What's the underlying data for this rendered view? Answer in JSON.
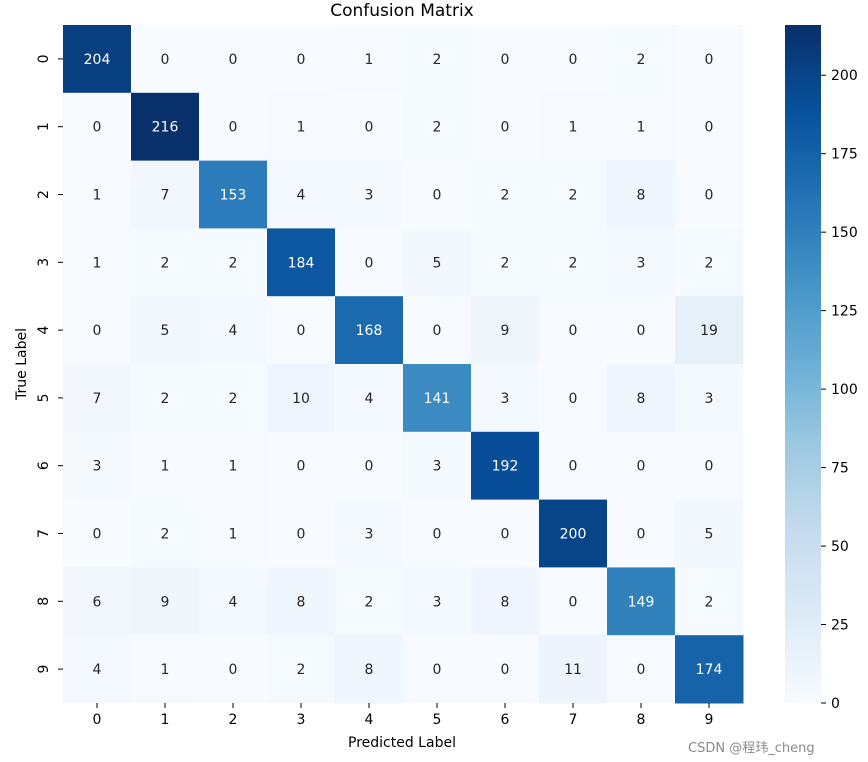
{
  "chart_data": {
    "type": "heatmap",
    "title": "Confusion Matrix",
    "xlabel": "Predicted Label",
    "ylabel": "True Label",
    "x_categories": [
      "0",
      "1",
      "2",
      "3",
      "4",
      "5",
      "6",
      "7",
      "8",
      "9"
    ],
    "y_categories": [
      "0",
      "1",
      "2",
      "3",
      "4",
      "5",
      "6",
      "7",
      "8",
      "9"
    ],
    "values": [
      [
        204,
        0,
        0,
        0,
        1,
        2,
        0,
        0,
        2,
        0
      ],
      [
        0,
        216,
        0,
        1,
        0,
        2,
        0,
        1,
        1,
        0
      ],
      [
        1,
        7,
        153,
        4,
        3,
        0,
        2,
        2,
        8,
        0
      ],
      [
        1,
        2,
        2,
        184,
        0,
        5,
        2,
        2,
        3,
        2
      ],
      [
        0,
        5,
        4,
        0,
        168,
        0,
        9,
        0,
        0,
        19
      ],
      [
        7,
        2,
        2,
        10,
        4,
        141,
        3,
        0,
        8,
        3
      ],
      [
        3,
        1,
        1,
        0,
        0,
        3,
        192,
        0,
        0,
        0
      ],
      [
        0,
        2,
        1,
        0,
        3,
        0,
        0,
        200,
        0,
        5
      ],
      [
        6,
        9,
        4,
        8,
        2,
        3,
        8,
        0,
        149,
        2
      ],
      [
        4,
        1,
        0,
        2,
        8,
        0,
        0,
        11,
        0,
        174
      ]
    ],
    "colorscale": "Blues",
    "vmin": 0,
    "vmax": 216,
    "colorbar_ticks": [
      "0",
      "25",
      "50",
      "75",
      "100",
      "125",
      "150",
      "175",
      "200"
    ]
  },
  "watermark": "CSDN @程玮_cheng"
}
